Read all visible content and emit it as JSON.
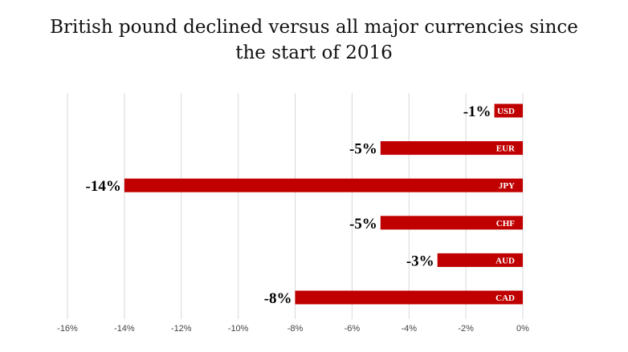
{
  "chart_data": {
    "type": "bar",
    "orientation": "horizontal",
    "title_lines": [
      "British pound declined versus all major currencies since",
      "the start of 2016"
    ],
    "categories": [
      "USD",
      "EUR",
      "JPY",
      "CHF",
      "AUD",
      "CAD"
    ],
    "values": [
      -1,
      -5,
      -14,
      -5,
      -3,
      -8
    ],
    "value_labels": [
      "-1%",
      "-5%",
      "-14%",
      "-5%",
      "-3%",
      "-8%"
    ],
    "xlim": [
      -16,
      0
    ],
    "xticks": [
      -16,
      -14,
      -12,
      -10,
      -8,
      -6,
      -4,
      -2,
      0
    ],
    "xtick_labels": [
      "-16%",
      "-14%",
      "-12%",
      "-10%",
      "-8%",
      "-6%",
      "-4%",
      "-2%",
      "0%"
    ],
    "grid": true,
    "legend": "none",
    "bar_color": "#c00000",
    "grid_color": "#d9d9d9"
  }
}
